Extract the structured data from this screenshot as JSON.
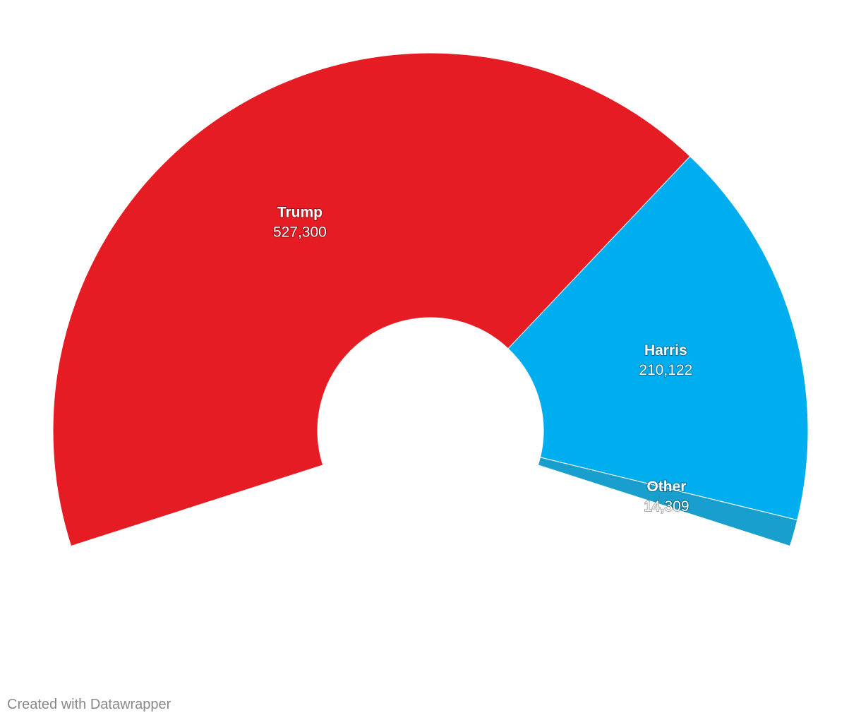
{
  "chart_data": {
    "type": "donut",
    "categories": [
      "Trump",
      "Harris",
      "Other"
    ],
    "values": [
      527300,
      210122,
      14309
    ],
    "value_labels": [
      "527,300",
      "210,122",
      "14,309"
    ],
    "colors": [
      "#e61c24",
      "#00aeef",
      "#189fcd"
    ],
    "credit": "Created with Datawrapper"
  }
}
